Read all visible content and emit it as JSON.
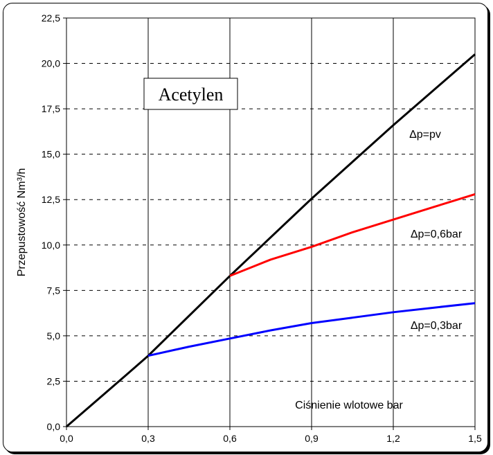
{
  "chart_data": {
    "type": "line",
    "title": "Acetylen",
    "xlabel": "Ciśnienie wlotowe bar",
    "ylabel": "Przepustowość Nm³/h",
    "xlim": [
      0,
      1.5
    ],
    "ylim": [
      0,
      22.5
    ],
    "x_ticks": [
      "0,0",
      "0,3",
      "0,6",
      "0,9",
      "1,2",
      "1,5"
    ],
    "y_ticks": [
      "0,0",
      "2,5",
      "5,0",
      "7,5",
      "10,0",
      "12,5",
      "15,0",
      "17,5",
      "20,0",
      "22,5"
    ],
    "grid": {
      "vertical": "solid",
      "horizontal": "dashed"
    },
    "series": [
      {
        "name": "Δp=pv",
        "color": "#000000",
        "points": [
          [
            0.0,
            0.0
          ],
          [
            0.22,
            2.85
          ],
          [
            0.3,
            3.9
          ],
          [
            0.6,
            8.3
          ],
          [
            0.9,
            12.55
          ],
          [
            1.2,
            16.6
          ],
          [
            1.5,
            20.5
          ]
        ]
      },
      {
        "name": "Δp=0,6bar",
        "color": "#ff0000",
        "points": [
          [
            0.6,
            8.3
          ],
          [
            0.75,
            9.2
          ],
          [
            0.9,
            9.9
          ],
          [
            1.05,
            10.7
          ],
          [
            1.2,
            11.4
          ],
          [
            1.35,
            12.1
          ],
          [
            1.5,
            12.8
          ]
        ]
      },
      {
        "name": "Δp=0,3bar",
        "color": "#0000ff",
        "points": [
          [
            0.3,
            3.9
          ],
          [
            0.45,
            4.4
          ],
          [
            0.6,
            4.85
          ],
          [
            0.75,
            5.3
          ],
          [
            0.9,
            5.7
          ],
          [
            1.05,
            6.0
          ],
          [
            1.2,
            6.3
          ],
          [
            1.35,
            6.55
          ],
          [
            1.5,
            6.8
          ]
        ]
      }
    ]
  }
}
